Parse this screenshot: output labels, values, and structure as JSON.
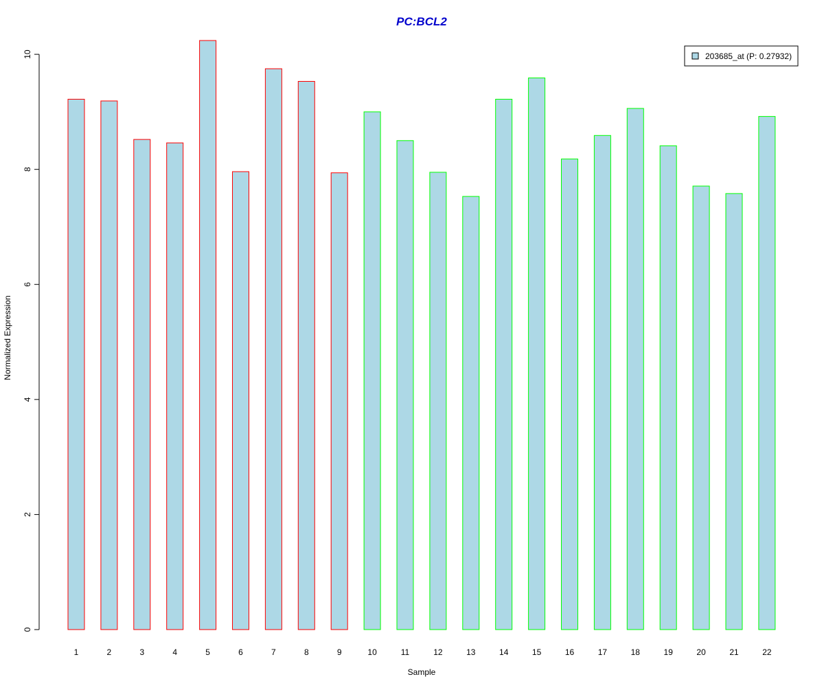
{
  "chart_data": {
    "type": "bar",
    "title": "PC:BCL2",
    "xlabel": "Sample",
    "ylabel": "Normalized Expression",
    "categories": [
      "1",
      "2",
      "3",
      "4",
      "5",
      "6",
      "7",
      "8",
      "9",
      "10",
      "11",
      "12",
      "13",
      "14",
      "15",
      "16",
      "17",
      "18",
      "19",
      "20",
      "21",
      "22"
    ],
    "series": [
      {
        "name": "203685_at (P: 0.27932)",
        "values": [
          9.22,
          9.19,
          8.52,
          8.46,
          10.24,
          7.96,
          9.75,
          9.53,
          7.94,
          9.0,
          8.5,
          7.95,
          7.53,
          9.22,
          9.59,
          8.18,
          8.59,
          9.06,
          8.41,
          7.71,
          7.58,
          8.92
        ],
        "fill": "#add8e6"
      }
    ],
    "bar_border_colors": [
      "#ff0000",
      "#ff0000",
      "#ff0000",
      "#ff0000",
      "#ff0000",
      "#ff0000",
      "#ff0000",
      "#ff0000",
      "#ff0000",
      "#00ff00",
      "#00ff00",
      "#00ff00",
      "#00ff00",
      "#00ff00",
      "#00ff00",
      "#00ff00",
      "#00ff00",
      "#00ff00",
      "#00ff00",
      "#00ff00",
      "#00ff00",
      "#00ff00"
    ],
    "yticks": [
      0,
      2,
      4,
      6,
      8,
      10
    ],
    "ylim": [
      0,
      10.24
    ],
    "grid": false,
    "legend_position": "top-right",
    "title_color": "#0000cc"
  }
}
